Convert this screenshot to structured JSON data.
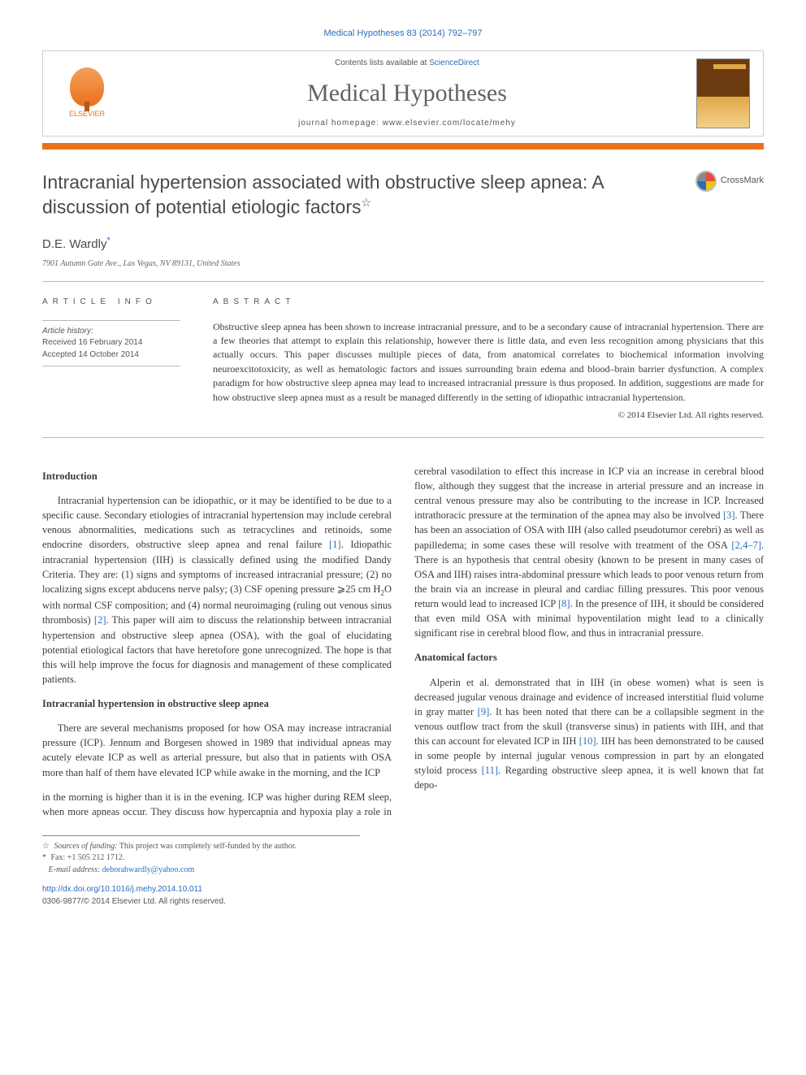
{
  "header": {
    "citation": "Medical Hypotheses 83 (2014) 792–797",
    "contents_prefix": "Contents lists available at ",
    "contents_link": "ScienceDirect",
    "journal_name": "Medical Hypotheses",
    "homepage_prefix": "journal homepage: ",
    "homepage_url": "www.elsevier.com/locate/mehy",
    "publisher_label": "ELSEVIER",
    "crossmark": "CrossMark"
  },
  "article": {
    "title": "Intracranial hypertension associated with obstructive sleep apnea: A discussion of potential etiologic factors",
    "title_star": "☆",
    "author": "D.E. Wardly",
    "corr_mark": "*",
    "affiliation": "7901 Autumn Gate Ave., Las Vegas, NV 89131, United States"
  },
  "info": {
    "heading": "ARTICLE INFO",
    "history_label": "Article history:",
    "received": "Received 16 February 2014",
    "accepted": "Accepted 14 October 2014"
  },
  "abstract": {
    "heading": "ABSTRACT",
    "text": "Obstructive sleep apnea has been shown to increase intracranial pressure, and to be a secondary cause of intracranial hypertension. There are a few theories that attempt to explain this relationship, however there is little data, and even less recognition among physicians that this actually occurs. This paper discusses multiple pieces of data, from anatomical correlates to biochemical information involving neuroexcitotoxicity, as well as hematologic factors and issues surrounding brain edema and blood–brain barrier dysfunction. A complex paradigm for how obstructive sleep apnea may lead to increased intracranial pressure is thus proposed. In addition, suggestions are made for how obstructive sleep apnea must as a result be managed differently in the setting of idiopathic intracranial hypertension.",
    "copyright": "© 2014 Elsevier Ltd. All rights reserved."
  },
  "sections": {
    "intro_heading": "Introduction",
    "intro_p1a": "Intracranial hypertension can be idiopathic, or it may be identified to be due to a specific cause. Secondary etiologies of intracranial hypertension may include cerebral venous abnormalities, medications such as tetracyclines and retinoids, some endocrine disorders, obstructive sleep apnea and renal failure ",
    "intro_ref1": "[1]",
    "intro_p1b": ". Idiopathic intracranial hypertension (IIH) is classically defined using the modified Dandy Criteria. They are: (1) signs and symptoms of increased intracranial pressure; (2) no localizing signs except abducens nerve palsy; (3) CSF opening pressure ⩾25 cm H",
    "intro_h2o": "2",
    "intro_p1c": "O with normal CSF composition; and (4) normal neuroimaging (ruling out venous sinus thrombosis) ",
    "intro_ref2": "[2]",
    "intro_p1d": ". This paper will aim to discuss the relationship between intracranial hypertension and obstructive sleep apnea (OSA), with the goal of elucidating potential etiological factors that have heretofore gone unrecognized. The hope is that this will help improve the focus for diagnosis and management of these complicated patients.",
    "osa_heading": "Intracranial hypertension in obstructive sleep apnea",
    "osa_p1": "There are several mechanisms proposed for how OSA may increase intracranial pressure (ICP). Jennum and Borgesen showed in 1989 that individual apneas may acutely elevate ICP as well as arterial pressure, but also that in patients with OSA more than half of them have elevated ICP while awake in the morning, and the ICP",
    "col2_p1a": "in the morning is higher than it is in the evening. ICP was higher during REM sleep, when more apneas occur. They discuss how hypercapnia and hypoxia play a role in cerebral vasodilation to effect this increase in ICP via an increase in cerebral blood flow, although they suggest that the increase in arterial pressure and an increase in central venous pressure may also be contributing to the increase in ICP. Increased intrathoracic pressure at the termination of the apnea may also be involved ",
    "col2_ref3": "[3]",
    "col2_p1b": ". There has been an association of OSA with IIH (also called pseudotumor cerebri) as well as papilledema; in some cases these will resolve with treatment of the OSA ",
    "col2_ref247": "[2,4–7]",
    "col2_p1c": ". There is an hypothesis that central obesity (known to be present in many cases of OSA and IIH) raises intra-abdominal pressure which leads to poor venous return from the brain via an increase in pleural and cardiac filling pressures. This poor venous return would lead to increased ICP ",
    "col2_ref8": "[8]",
    "col2_p1d": ". In the presence of IIH, it should be considered that even mild OSA with minimal hypoventilation might lead to a clinically significant rise in cerebral blood flow, and thus in intracranial pressure.",
    "anat_heading": "Anatomical factors",
    "anat_p1a": "Alperin et al. demonstrated that in IIH (in obese women) what is seen is decreased jugular venous drainage and evidence of increased interstitial fluid volume in gray matter ",
    "anat_ref9": "[9]",
    "anat_p1b": ". It has been noted that there can be a collapsible segment in the venous outflow tract from the skull (transverse sinus) in patients with IIH, and that this can account for elevated ICP in IIH ",
    "anat_ref10": "[10]",
    "anat_p1c": ". IIH has been demonstrated to be caused in some people by internal jugular venous compression in part by an elongated styloid process ",
    "anat_ref11": "[11]",
    "anat_p1d": ". Regarding obstructive sleep apnea, it is well known that fat depo-"
  },
  "footnotes": {
    "funding_star": "☆",
    "funding_label": "Sources of funding:",
    "funding_text": " This project was completely self-funded by the author.",
    "corr_star": "*",
    "fax": " Fax: +1 505 212 1712.",
    "email_label": "E-mail address: ",
    "email": "deborahwardly@yahoo.com"
  },
  "doi": {
    "url": "http://dx.doi.org/10.1016/j.mehy.2014.10.011",
    "issn_line": "0306-9877/© 2014 Elsevier Ltd. All rights reserved."
  },
  "colors": {
    "accent_orange": "#e9711c",
    "link_blue": "#2a6ebb",
    "text_gray": "#3b3b3b",
    "rule_gray": "#b8b8b8"
  }
}
